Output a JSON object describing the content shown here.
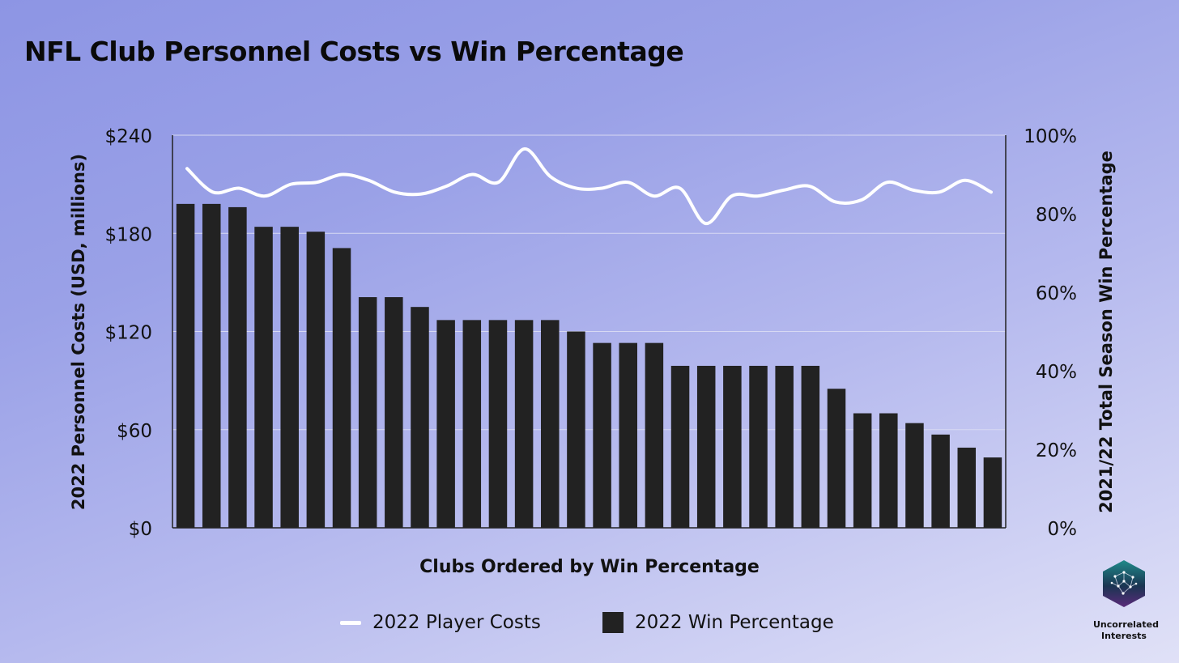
{
  "title": "NFL Club Personnel Costs vs Win Percentage",
  "colors": {
    "bar": "#222222",
    "line": "#ffffff",
    "axis": "#222222",
    "grid": "#d7d9f3"
  },
  "logo": {
    "icon": "hexagon-network-logo-icon",
    "line1": "Uncorrelated",
    "line2": "Interests"
  },
  "legend": [
    {
      "label": "2022 Player Costs",
      "swatch": "line"
    },
    {
      "label": "2022 Win Percentage",
      "swatch": "box"
    }
  ],
  "chart_data": {
    "type": "bar",
    "xlabel": "Clubs Ordered by Win Percentage",
    "ylabel_left": "2022 Personnel Costs (USD, millions)",
    "ylabel_right": "2021/22 Total Season Win Percentage",
    "left_ticks": [
      "$0",
      "$60",
      "$120",
      "$180",
      "$240"
    ],
    "right_ticks": [
      "0%",
      "20%",
      "40%",
      "60%",
      "80%",
      "100%"
    ],
    "ylim_left": [
      0,
      240
    ],
    "ylim_right": [
      0,
      100
    ],
    "grid": true,
    "legend_position": "bottom",
    "series": [
      {
        "name": "2022 Win Percentage",
        "type": "bar",
        "axis": "left",
        "values": [
          198,
          198,
          196,
          184,
          184,
          181,
          171,
          141,
          141,
          135,
          127,
          127,
          127,
          127,
          127,
          120,
          113,
          113,
          113,
          99,
          99,
          99,
          99,
          99,
          99,
          85,
          70,
          70,
          64,
          57,
          49,
          43
        ]
      },
      {
        "name": "2022 Player Costs",
        "type": "line",
        "axis": "right",
        "values": [
          91.5,
          85.5,
          86.5,
          84.5,
          87.5,
          88,
          90,
          88.5,
          85.5,
          85,
          87,
          90,
          88,
          96.5,
          89.5,
          86.5,
          86.5,
          88,
          84.5,
          86.5,
          77.5,
          84.5,
          84.5,
          86,
          87,
          83,
          83.5,
          88,
          86,
          85.5,
          88.5,
          85.5
        ]
      }
    ]
  }
}
